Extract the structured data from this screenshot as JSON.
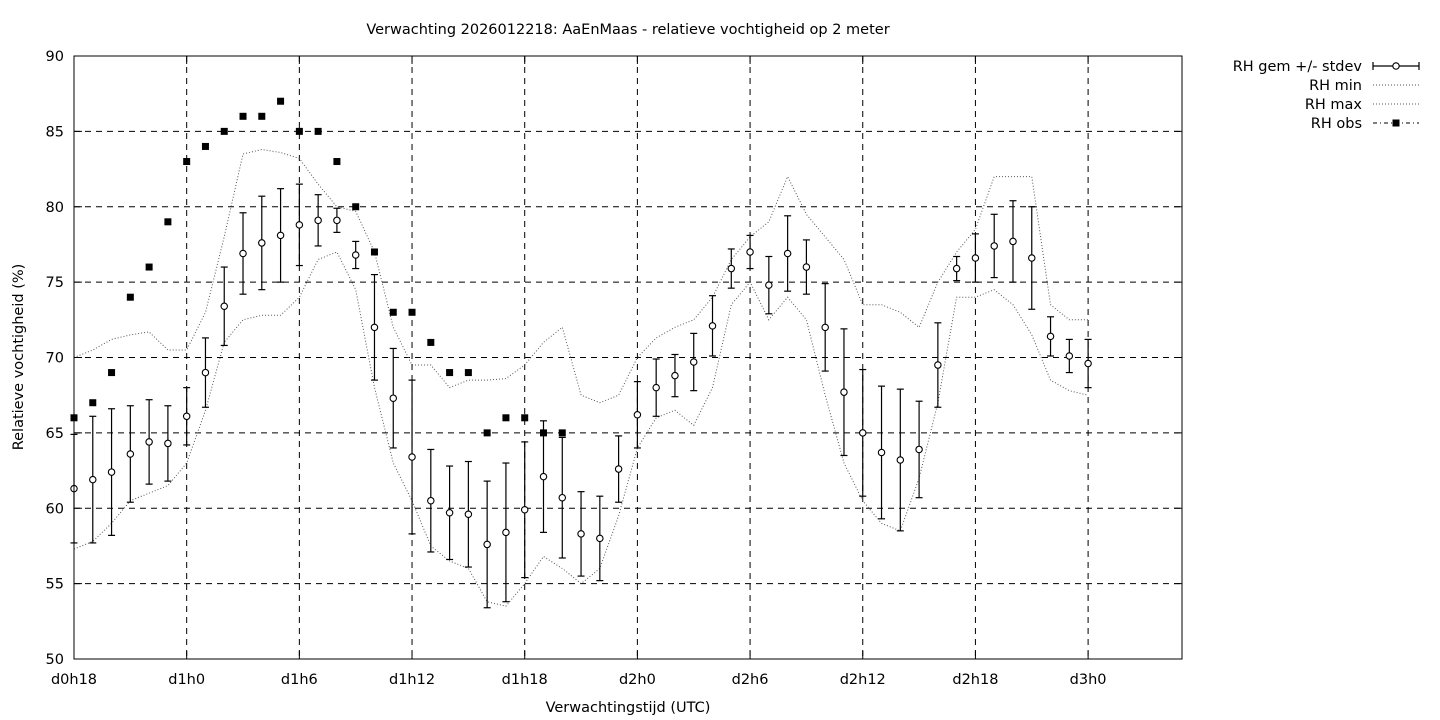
{
  "chart_data": {
    "type": "line",
    "title": "Verwachting 2026012218: AaEnMaas - relatieve vochtigheid op 2 meter",
    "xlabel": "Verwachtingstijd (UTC)",
    "ylabel": "Relatieve vochtigheid (%)",
    "xlim": [
      18,
      77
    ],
    "ylim": [
      50,
      90
    ],
    "grid": true,
    "legend_position": "outside-top-right",
    "x_unit": "hours since d0h0",
    "x_ticks": [
      18,
      24,
      30,
      36,
      42,
      48,
      54,
      60,
      66,
      72
    ],
    "x_tick_labels": [
      "d0h18",
      "d1h0",
      "d1h6",
      "d1h12",
      "d1h18",
      "d2h0",
      "d2h6",
      "d2h12",
      "d2h18",
      "d3h0"
    ],
    "y_ticks": [
      50,
      55,
      60,
      65,
      70,
      75,
      80,
      85,
      90
    ],
    "y_tick_labels": [
      "50",
      "55",
      "60",
      "65",
      "70",
      "75",
      "80",
      "85",
      "90"
    ],
    "series": [
      {
        "name": "RH gem +/- stdev",
        "style": "errorbars",
        "x": [
          18,
          19,
          20,
          21,
          22,
          23,
          24,
          25,
          26,
          27,
          28,
          29,
          30,
          31,
          32,
          33,
          34,
          35,
          36,
          37,
          38,
          39,
          40,
          41,
          42,
          43,
          44,
          45,
          46,
          47,
          48,
          49,
          50,
          51,
          52,
          53,
          54,
          55,
          56,
          57,
          58,
          59,
          60,
          61,
          62,
          63,
          64,
          65,
          66,
          67,
          68,
          69,
          70,
          71,
          72
        ],
        "y": [
          61.3,
          61.9,
          62.4,
          63.6,
          64.4,
          64.3,
          66.1,
          69.0,
          73.4,
          76.9,
          77.6,
          78.1,
          78.8,
          79.1,
          79.1,
          76.8,
          72.0,
          67.3,
          63.4,
          60.5,
          59.7,
          59.6,
          57.6,
          58.4,
          59.9,
          62.1,
          60.7,
          58.3,
          58.0,
          62.6,
          66.2,
          68.0,
          68.8,
          69.7,
          72.1,
          75.9,
          77.0,
          74.8,
          76.9,
          76.0,
          72.0,
          67.7,
          65.0,
          63.7,
          63.2,
          63.9,
          69.5,
          75.9,
          76.6,
          77.4,
          77.7,
          76.6,
          71.4,
          70.1,
          69.6
        ],
        "err": [
          3.6,
          4.2,
          4.2,
          3.2,
          2.8,
          2.5,
          1.9,
          2.3,
          2.6,
          2.7,
          3.1,
          3.1,
          2.7,
          1.7,
          0.8,
          0.9,
          3.5,
          3.3,
          5.1,
          3.4,
          3.1,
          3.5,
          4.2,
          4.6,
          4.5,
          3.7,
          4.0,
          2.8,
          2.8,
          2.2,
          2.2,
          1.9,
          1.4,
          1.9,
          2.0,
          1.3,
          1.1,
          1.9,
          2.5,
          1.8,
          2.9,
          4.2,
          4.2,
          4.4,
          4.7,
          3.2,
          2.8,
          0.8,
          1.6,
          2.1,
          2.7,
          3.4,
          1.3,
          1.1,
          1.6
        ]
      },
      {
        "name": "RH min",
        "style": "dotted",
        "x": [
          18,
          19,
          20,
          21,
          22,
          23,
          24,
          25,
          26,
          27,
          28,
          29,
          30,
          31,
          32,
          33,
          34,
          35,
          36,
          37,
          38,
          39,
          40,
          41,
          42,
          43,
          44,
          45,
          46,
          47,
          48,
          49,
          50,
          51,
          52,
          53,
          54,
          55,
          56,
          57,
          58,
          59,
          60,
          61,
          62,
          63,
          64,
          65,
          66,
          67,
          68,
          69,
          70,
          71,
          72
        ],
        "y": [
          57.3,
          57.8,
          59.0,
          60.5,
          61.0,
          61.5,
          63.0,
          66.5,
          71.0,
          72.5,
          72.8,
          72.8,
          74.0,
          76.5,
          77.0,
          74.5,
          68.0,
          63.0,
          60.5,
          57.5,
          56.5,
          56.0,
          53.8,
          53.5,
          55.0,
          56.8,
          56.0,
          55.0,
          56.0,
          59.5,
          64.0,
          66.0,
          66.5,
          65.5,
          68.0,
          73.5,
          75.0,
          72.5,
          74.0,
          72.5,
          67.5,
          63.0,
          60.5,
          59.0,
          58.5,
          62.0,
          67.0,
          74.0,
          74.0,
          74.5,
          73.5,
          71.5,
          68.5,
          67.8,
          67.5
        ]
      },
      {
        "name": "RH max",
        "style": "dotted",
        "x": [
          18,
          19,
          20,
          21,
          22,
          23,
          24,
          25,
          26,
          27,
          28,
          29,
          30,
          31,
          32,
          33,
          34,
          35,
          36,
          37,
          38,
          39,
          40,
          41,
          42,
          43,
          44,
          45,
          46,
          47,
          48,
          49,
          50,
          51,
          52,
          53,
          54,
          55,
          56,
          57,
          58,
          59,
          60,
          61,
          62,
          63,
          64,
          65,
          66,
          67,
          68,
          69,
          70,
          71,
          72
        ],
        "y": [
          70.0,
          70.5,
          71.2,
          71.5,
          71.7,
          70.5,
          70.5,
          73.0,
          78.0,
          83.5,
          83.8,
          83.6,
          83.2,
          81.5,
          80.0,
          79.7,
          77.0,
          72.0,
          69.5,
          69.5,
          68.0,
          68.5,
          68.5,
          68.6,
          69.5,
          71.0,
          72.0,
          67.5,
          67.0,
          67.5,
          70.0,
          71.3,
          72.0,
          72.5,
          74.0,
          76.5,
          78.0,
          79.0,
          82.0,
          79.5,
          78.0,
          76.5,
          73.5,
          73.5,
          73.0,
          72.0,
          75.0,
          77.0,
          78.5,
          82.0,
          82.0,
          82.0,
          73.5,
          72.5,
          72.5
        ]
      },
      {
        "name": "RH obs",
        "style": "squares",
        "x": [
          18,
          19,
          20,
          21,
          22,
          23,
          24,
          25,
          26,
          27,
          28,
          29,
          30,
          31,
          32,
          33,
          34,
          35,
          36,
          37,
          38,
          39,
          40,
          41,
          42,
          43,
          44
        ],
        "y": [
          66,
          67,
          69,
          74,
          76,
          79,
          83,
          84,
          85,
          86,
          86,
          87,
          85,
          85,
          83,
          80,
          77,
          73,
          73,
          71,
          69,
          69,
          65,
          66,
          66,
          65,
          65
        ]
      }
    ]
  }
}
